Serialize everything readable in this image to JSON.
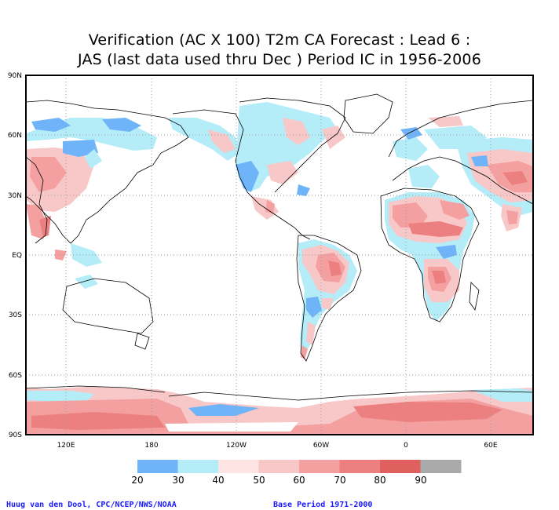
{
  "title": {
    "line1": "Verification (AC X 100) T2m CA Forecast : Lead 6 :",
    "line2": "JAS (last data used thru Dec ) Period IC in 1956-2006"
  },
  "axes": {
    "lat_labels": [
      "90N",
      "60N",
      "30N",
      "EQ",
      "30S",
      "60S",
      "90S"
    ],
    "lon_labels": [
      "120E",
      "180",
      "120W",
      "60W",
      "0",
      "60E"
    ]
  },
  "legend": {
    "labels": [
      "20",
      "30",
      "40",
      "50",
      "60",
      "70",
      "80",
      "90"
    ],
    "colors": [
      "#6fb4f8",
      "#b4ecf8",
      "#ffe4e4",
      "#f8c8c8",
      "#f4a0a0",
      "#ec8080",
      "#e06060",
      "#aaaaaa"
    ]
  },
  "credits": {
    "left": "Huug van den Dool, CPC/NCEP/NWS/NOAA",
    "right": "Base Period 1971-2000"
  }
}
